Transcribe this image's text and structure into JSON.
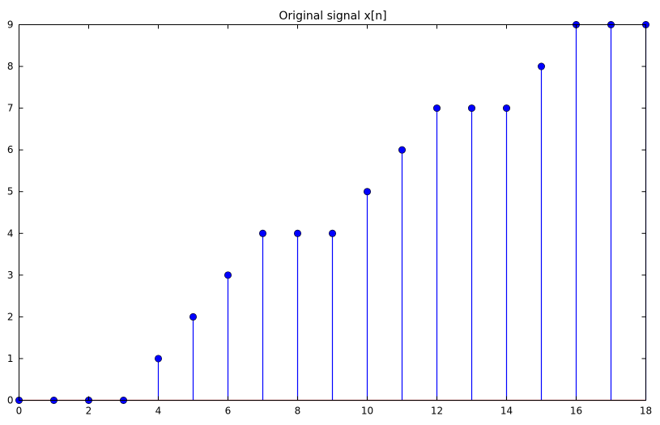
{
  "chart_data": {
    "type": "stem",
    "title": "Original signal x[n]",
    "xlabel": "",
    "ylabel": "",
    "xlim": [
      0,
      18
    ],
    "ylim": [
      0,
      9
    ],
    "x_ticks": [
      "0",
      "2",
      "4",
      "6",
      "8",
      "10",
      "12",
      "14",
      "16",
      "18"
    ],
    "y_ticks": [
      "0",
      "1",
      "2",
      "3",
      "4",
      "5",
      "6",
      "7",
      "8",
      "9"
    ],
    "x": [
      0,
      1,
      2,
      3,
      4,
      5,
      6,
      7,
      8,
      9,
      10,
      11,
      12,
      13,
      14,
      15,
      16,
      17,
      18
    ],
    "values": [
      0,
      0,
      0,
      0,
      1,
      2,
      3,
      4,
      4,
      4,
      5,
      6,
      7,
      7,
      7,
      8,
      9,
      9,
      9
    ],
    "grid": false,
    "legend": "none",
    "colors": {
      "stem": "#0000ff",
      "marker": "#0000ff",
      "baseline": "#ff0000",
      "axes": "#000000"
    }
  }
}
